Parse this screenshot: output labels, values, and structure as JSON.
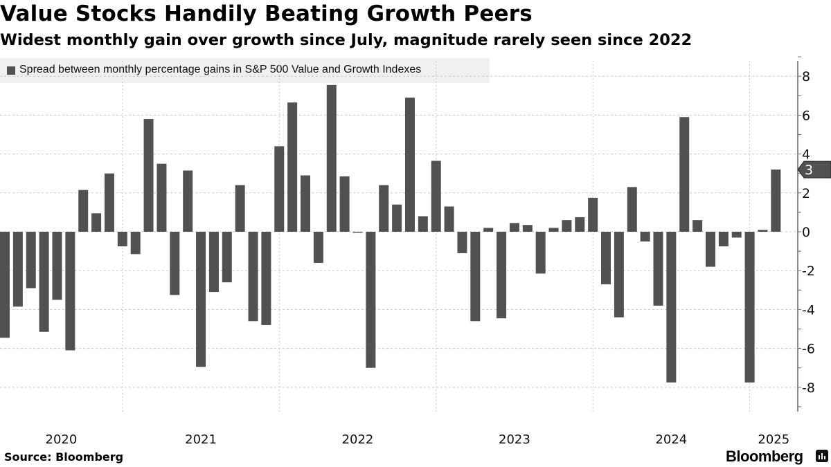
{
  "header": {
    "title": "Value Stocks Handily Beating Growth Peers",
    "subtitle": "Widest monthly gain over growth since July, magnitude rarely seen since 2022"
  },
  "footer": {
    "source": "Source: Bloomberg",
    "logo": "Bloomberg"
  },
  "colors": {
    "bar": "#515151",
    "grid": "#c8c8c8",
    "legend_bg": "#f0f0f0"
  },
  "chart_data": {
    "type": "bar",
    "title": "Value Stocks Handily Beating Growth Peers",
    "legend": [
      "Spread between monthly percentage gains in S&P 500 Value and Growth Indexes"
    ],
    "legend_placement": "top-left",
    "categories": [
      "2020-03",
      "2020-04",
      "2020-05",
      "2020-06",
      "2020-07",
      "2020-08",
      "2020-09",
      "2020-10",
      "2020-11",
      "2020-12",
      "2021-01",
      "2021-02",
      "2021-03",
      "2021-04",
      "2021-05",
      "2021-06",
      "2021-07",
      "2021-08",
      "2021-09",
      "2021-10",
      "2021-11",
      "2021-12",
      "2022-01",
      "2022-02",
      "2022-03",
      "2022-04",
      "2022-05",
      "2022-06",
      "2022-07",
      "2022-08",
      "2022-09",
      "2022-10",
      "2022-11",
      "2022-12",
      "2023-01",
      "2023-02",
      "2023-03",
      "2023-04",
      "2023-05",
      "2023-06",
      "2023-07",
      "2023-08",
      "2023-09",
      "2023-10",
      "2023-11",
      "2023-12",
      "2024-01",
      "2024-02",
      "2024-03",
      "2024-04",
      "2024-05",
      "2024-06",
      "2024-07",
      "2024-08",
      "2024-09",
      "2024-10",
      "2024-11",
      "2024-12",
      "2025-01",
      "2025-02"
    ],
    "values": [
      -5.45,
      -3.85,
      -2.9,
      -5.15,
      -3.5,
      -6.1,
      2.15,
      0.95,
      3.0,
      -0.75,
      -1.15,
      5.8,
      3.5,
      -3.25,
      3.15,
      -6.95,
      -3.1,
      -2.6,
      2.4,
      -4.6,
      -4.8,
      4.4,
      6.65,
      2.9,
      -1.6,
      7.55,
      2.85,
      -0.05,
      -7.0,
      2.4,
      1.4,
      6.9,
      0.8,
      3.65,
      1.3,
      -1.1,
      -4.6,
      0.2,
      -4.45,
      0.45,
      0.35,
      -2.15,
      0.2,
      0.6,
      0.75,
      1.75,
      -2.7,
      -4.4,
      2.3,
      -0.5,
      -3.8,
      -7.75,
      5.9,
      0.6,
      -1.8,
      -0.75,
      -0.3,
      -7.75,
      0.1,
      3.2
    ],
    "x_tick_labels": [
      "2020",
      "2021",
      "2022",
      "2023",
      "2024",
      "2025"
    ],
    "y_ticks": [
      8,
      6,
      4,
      2,
      0,
      -2,
      -4,
      -6,
      -8
    ],
    "ylim": [
      -9,
      9
    ],
    "last_value_label": "3",
    "grid": true,
    "xlabel": "",
    "ylabel": ""
  }
}
